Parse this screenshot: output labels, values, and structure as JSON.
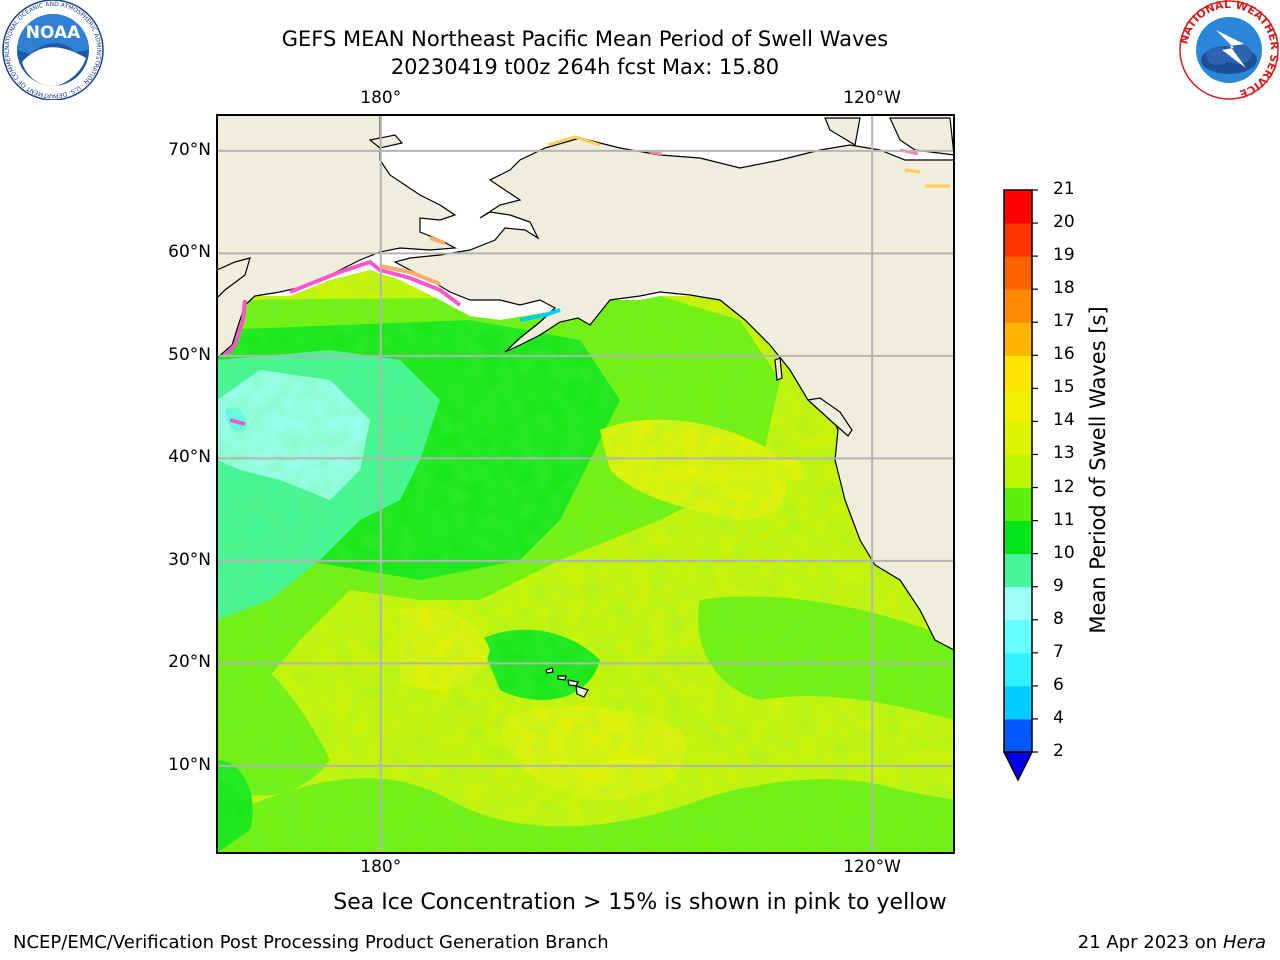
{
  "title": {
    "line1": "GEFS MEAN Northeast Pacific Mean Period of Swell Waves",
    "line2": "20230419 t00z 264h fcst   Max: 15.80"
  },
  "logos": {
    "left": {
      "name": "noaa-logo",
      "text": "NOAA",
      "ring_text": "NATIONAL OCEANIC AND ATMOSPHERIC ADMINISTRATION · U.S. DEPARTMENT OF COMMERCE"
    },
    "right": {
      "name": "nws-logo",
      "ring_text": "NATIONAL WEATHER SERVICE"
    }
  },
  "map": {
    "projection": "cylindrical",
    "lon_range": [
      160,
      250
    ],
    "lat_range": [
      1.5,
      73.5
    ],
    "lat_ticks": [
      {
        "value": 70,
        "label": "70°N"
      },
      {
        "value": 60,
        "label": "60°N"
      },
      {
        "value": 50,
        "label": "50°N"
      },
      {
        "value": 40,
        "label": "40°N"
      },
      {
        "value": 30,
        "label": "30°N"
      },
      {
        "value": 20,
        "label": "20°N"
      },
      {
        "value": 10,
        "label": "10°N"
      }
    ],
    "lon_ticks": [
      {
        "value": 180,
        "label": "180°"
      },
      {
        "value": 240,
        "label": "120°W"
      }
    ],
    "land_color": "#efeddc",
    "grid_color": "#b4b4b4"
  },
  "colorbar": {
    "title": "Mean Period of Swell Waves [s]",
    "levels": [
      "2",
      "4",
      "6",
      "7",
      "8",
      "9",
      "10",
      "11",
      "12",
      "13",
      "14",
      "15",
      "16",
      "17",
      "18",
      "19",
      "20",
      "21"
    ],
    "colors": [
      "#0058ff",
      "#00ccff",
      "#33f2ff",
      "#66ffff",
      "#9ffff9",
      "#46f59c",
      "#00e619",
      "#5af00a",
      "#bef700",
      "#ddf300",
      "#f0f000",
      "#ffe600",
      "#ffb400",
      "#ff8a00",
      "#ff6200",
      "#ff3500",
      "#ff0000"
    ],
    "extend_color": "#0000ee"
  },
  "footer": {
    "note": "Sea Ice Concentration > 15% is shown in pink to yellow",
    "left": "NCEP/EMC/Verification Post Processing Product Generation Branch",
    "right_prefix": "21 Apr 2023 on ",
    "right_italic": "Hera"
  }
}
